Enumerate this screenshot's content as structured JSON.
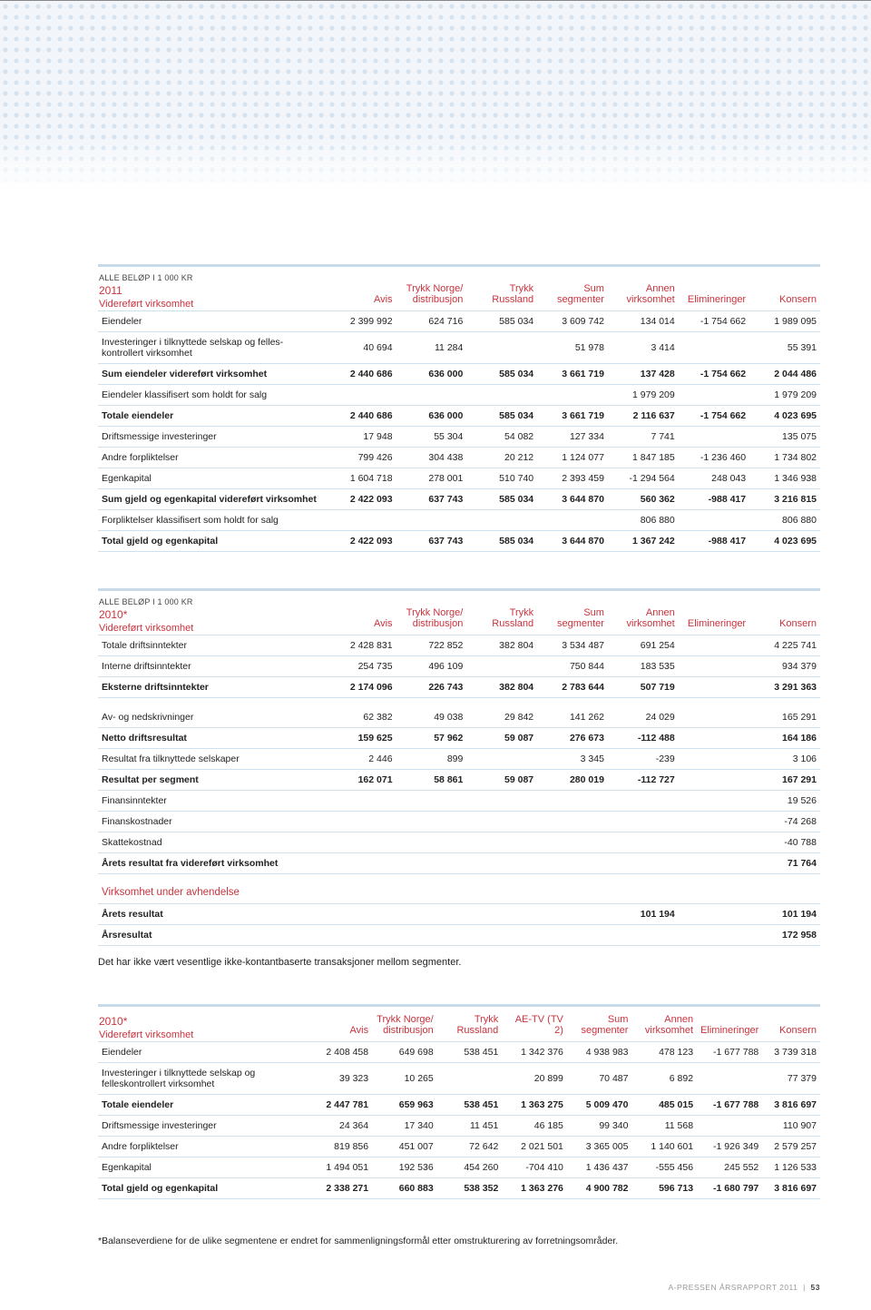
{
  "colors": {
    "accent": "#c9333d",
    "row_border": "#cfe0ef",
    "topbar": "#c8d9e8",
    "dot": "#d5e3f0",
    "banner_bg": "#f2f6fa"
  },
  "typography": {
    "base_font_pt": 10.5,
    "header_font_pt": 11,
    "note_font_pt": 11
  },
  "tables": [
    {
      "id": "t2011",
      "super": "ALLE BELØP I 1 000 KR",
      "year": "2011",
      "sub": "Videreført virksomhet",
      "columns": [
        {
          "l1": "",
          "l2": "Avis"
        },
        {
          "l1": "Trykk Norge/",
          "l2": "distribusjon"
        },
        {
          "l1": "Trykk",
          "l2": "Russland"
        },
        {
          "l1": "Sum",
          "l2": "segmenter"
        },
        {
          "l1": "Annen",
          "l2": "virksomhet"
        },
        {
          "l1": "",
          "l2": "Elimineringer"
        },
        {
          "l1": "",
          "l2": "Konsern"
        }
      ],
      "rows": [
        {
          "label": "Eiendeler",
          "cells": [
            "2 399 992",
            "624 716",
            "585 034",
            "3 609 742",
            "134 014",
            "-1 754 662",
            "1 989 095"
          ]
        },
        {
          "label": "Investeringer i tilknyttede selskap og felles-kontrollert virksomhet",
          "cells": [
            "40 694",
            "11 284",
            "",
            "51 978",
            "3 414",
            "",
            "55 391"
          ]
        },
        {
          "label": "Sum eiendeler videreført virksomhet",
          "cells": [
            "2 440 686",
            "636 000",
            "585 034",
            "3 661 719",
            "137 428",
            "-1 754 662",
            "2 044 486"
          ],
          "bold": true
        },
        {
          "label": "Eiendeler klassifisert som holdt for salg",
          "cells": [
            "",
            "",
            "",
            "",
            "1 979 209",
            "",
            "1 979 209"
          ]
        },
        {
          "label": "Totale eiendeler",
          "cells": [
            "2 440 686",
            "636 000",
            "585 034",
            "3 661 719",
            "2 116 637",
            "-1 754 662",
            "4 023 695"
          ],
          "bold": true
        },
        {
          "label": "Driftsmessige investeringer",
          "cells": [
            "17 948",
            "55 304",
            "54 082",
            "127 334",
            "7 741",
            "",
            "135 075"
          ]
        },
        {
          "label": "Andre forpliktelser",
          "cells": [
            "799 426",
            "304 438",
            "20 212",
            "1 124 077",
            "1 847 185",
            "-1 236 460",
            "1 734 802"
          ]
        },
        {
          "label": "Egenkapital",
          "cells": [
            "1 604 718",
            "278 001",
            "510 740",
            "2 393 459",
            "-1 294 564",
            "248 043",
            "1 346 938"
          ]
        },
        {
          "label": "Sum gjeld og egenkapital videreført virksomhet",
          "cells": [
            "2 422 093",
            "637 743",
            "585 034",
            "3 644 870",
            "560 362",
            "-988 417",
            "3 216 815"
          ],
          "bold": true
        },
        {
          "label": "Forpliktelser klassifisert som holdt for salg",
          "cells": [
            "",
            "",
            "",
            "",
            "806 880",
            "",
            "806 880"
          ]
        },
        {
          "label": "Total gjeld og egenkapital",
          "cells": [
            "2 422 093",
            "637 743",
            "585 034",
            "3 644 870",
            "1 367 242",
            "-988 417",
            "4 023 695"
          ],
          "bold": true
        }
      ]
    },
    {
      "id": "t2010a",
      "super": "ALLE BELØP I 1 000 KR",
      "year": "2010*",
      "sub": "Videreført virksomhet",
      "columns": [
        {
          "l1": "",
          "l2": "Avis"
        },
        {
          "l1": "Trykk Norge/",
          "l2": "distribusjon"
        },
        {
          "l1": "Trykk",
          "l2": "Russland"
        },
        {
          "l1": "Sum",
          "l2": "segmenter"
        },
        {
          "l1": "Annen",
          "l2": "virksomhet"
        },
        {
          "l1": "",
          "l2": "Elimineringer"
        },
        {
          "l1": "",
          "l2": "Konsern"
        }
      ],
      "rows": [
        {
          "label": "Totale driftsinntekter",
          "cells": [
            "2 428 831",
            "722 852",
            "382 804",
            "3 534 487",
            "691 254",
            "",
            "4 225 741"
          ]
        },
        {
          "label": "Interne driftsinntekter",
          "cells": [
            "254 735",
            "496 109",
            "",
            "750 844",
            "183 535",
            "",
            "934 379"
          ]
        },
        {
          "label": "Eksterne driftsinntekter",
          "cells": [
            "2 174 096",
            "226 743",
            "382 804",
            "2 783 644",
            "507 719",
            "",
            "3 291 363"
          ],
          "bold": true
        },
        {
          "spacer": true
        },
        {
          "label": "Av- og nedskrivninger",
          "cells": [
            "62 382",
            "49 038",
            "29 842",
            "141 262",
            "24 029",
            "",
            "165 291"
          ]
        },
        {
          "label": "Netto driftsresultat",
          "cells": [
            "159 625",
            "57 962",
            "59 087",
            "276 673",
            "-112 488",
            "",
            "164 186"
          ],
          "bold": true
        },
        {
          "label": "Resultat fra tilknyttede selskaper",
          "cells": [
            "2 446",
            "899",
            "",
            "3 345",
            "-239",
            "",
            "3 106"
          ]
        },
        {
          "label": "Resultat per segment",
          "cells": [
            "162 071",
            "58 861",
            "59 087",
            "280 019",
            "-112 727",
            "",
            "167 291"
          ],
          "bold": true
        },
        {
          "label": "Finansinntekter",
          "cells": [
            "",
            "",
            "",
            "",
            "",
            "",
            "19 526"
          ]
        },
        {
          "label": "Finanskostnader",
          "cells": [
            "",
            "",
            "",
            "",
            "",
            "",
            "-74 268"
          ]
        },
        {
          "label": "Skattekostnad",
          "cells": [
            "",
            "",
            "",
            "",
            "",
            "",
            "-40 788"
          ]
        },
        {
          "label": "Årets resultat fra videreført virksomhet",
          "cells": [
            "",
            "",
            "",
            "",
            "",
            "",
            "71 764"
          ],
          "bold": true
        }
      ],
      "section_title": "Virksomhet under avhendelse",
      "section_rows": [
        {
          "label": "Årets resultat",
          "cells": [
            "",
            "",
            "",
            "",
            "101 194",
            "",
            "101 194"
          ],
          "bold": true
        },
        {
          "label": "Årsresultat",
          "cells": [
            "",
            "",
            "",
            "",
            "",
            "",
            "172 958"
          ],
          "bold": true
        }
      ],
      "after_note": "Det har ikke vært vesentlige ikke-kontantbaserte transaksjoner mellom segmenter."
    },
    {
      "id": "t2010b",
      "super": "",
      "year": "2010*",
      "sub": "Videreført virksomhet",
      "columns": [
        {
          "l1": "",
          "l2": "Avis"
        },
        {
          "l1": "Trykk Norge/",
          "l2": "distribusjon"
        },
        {
          "l1": "Trykk",
          "l2": "Russland"
        },
        {
          "l1": "",
          "l2": "AE-TV (TV 2)"
        },
        {
          "l1": "Sum",
          "l2": "segmenter"
        },
        {
          "l1": "Annen",
          "l2": "virksomhet"
        },
        {
          "l1": "",
          "l2": "Elimineringer"
        },
        {
          "l1": "",
          "l2": "Konsern"
        }
      ],
      "rows": [
        {
          "label": "Eiendeler",
          "cells": [
            "2 408 458",
            "649 698",
            "538 451",
            "1 342 376",
            "4 938 983",
            "478 123",
            "-1 677 788",
            "3 739 318"
          ]
        },
        {
          "label": "Investeringer i tilknyttede selskap og felleskontrollert virksomhet",
          "cells": [
            "39 323",
            "10 265",
            "",
            "20 899",
            "70 487",
            "6 892",
            "",
            "77 379"
          ]
        },
        {
          "label": "Totale eiendeler",
          "cells": [
            "2 447 781",
            "659 963",
            "538 451",
            "1 363 275",
            "5 009 470",
            "485 015",
            "-1 677 788",
            "3 816 697"
          ],
          "bold": true
        },
        {
          "label": "Driftsmessige investeringer",
          "cells": [
            "24 364",
            "17 340",
            "11 451",
            "46 185",
            "99 340",
            "11 568",
            "",
            "110 907"
          ]
        },
        {
          "label": "Andre forpliktelser",
          "cells": [
            "819 856",
            "451 007",
            "72 642",
            "2 021 501",
            "3 365 005",
            "1 140 601",
            "-1 926 349",
            "2 579 257"
          ]
        },
        {
          "label": "Egenkapital",
          "cells": [
            "1 494 051",
            "192 536",
            "454 260",
            "-704 410",
            "1 436 437",
            "-555 456",
            "245 552",
            "1 126 533"
          ]
        },
        {
          "label": "Total gjeld og egenkapital",
          "cells": [
            "2 338 271",
            "660 883",
            "538 352",
            "1 363 276",
            "4 900 782",
            "596 713",
            "-1 680 797",
            "3 816 697"
          ],
          "bold": true
        }
      ]
    }
  ],
  "footnote": "*Balanseverdiene for de ulike segmentene er endret for sammenligningsformål etter omstrukturering av forretningsområder.",
  "footer": {
    "text": "A-PRESSEN ÅRSRAPPORT 2011",
    "page": "53"
  }
}
